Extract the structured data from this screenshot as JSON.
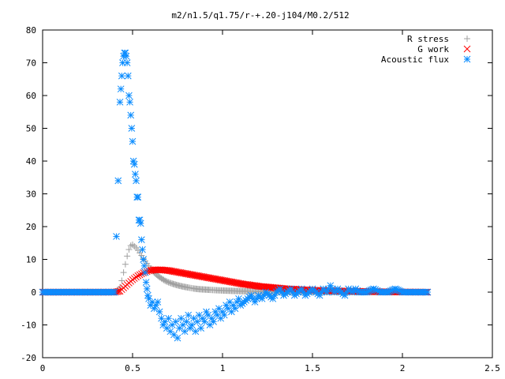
{
  "chart_data": {
    "type": "scatter",
    "title": "m2/n1.5/q1.75/r-+.20-j104/M0.2/512",
    "xlabel": "",
    "ylabel": "",
    "xlim": [
      0,
      2.5
    ],
    "ylim": [
      -20,
      80
    ],
    "xticks": [
      {
        "value": 0,
        "label": "0"
      },
      {
        "value": 0.5,
        "label": "0.5"
      },
      {
        "value": 1,
        "label": "1"
      },
      {
        "value": 1.5,
        "label": "1.5"
      },
      {
        "value": 2,
        "label": "2"
      },
      {
        "value": 2.5,
        "label": "2.5"
      }
    ],
    "yticks": [
      {
        "value": -20,
        "label": "-20"
      },
      {
        "value": -10,
        "label": "-10"
      },
      {
        "value": 0,
        "label": "0"
      },
      {
        "value": 10,
        "label": "10"
      },
      {
        "value": 20,
        "label": "20"
      },
      {
        "value": 30,
        "label": "30"
      },
      {
        "value": 40,
        "label": "40"
      },
      {
        "value": 50,
        "label": "50"
      },
      {
        "value": 60,
        "label": "60"
      },
      {
        "value": 70,
        "label": "70"
      },
      {
        "value": 80,
        "label": "80"
      }
    ],
    "grid": false,
    "legend_position": "top-right",
    "series": [
      {
        "name": "R stress",
        "marker": "plus",
        "color": "#a0a0a0",
        "x": [
          0.0,
          0.05,
          0.1,
          0.15,
          0.2,
          0.25,
          0.3,
          0.35,
          0.4,
          0.42,
          0.43,
          0.44,
          0.45,
          0.46,
          0.47,
          0.48,
          0.49,
          0.5,
          0.51,
          0.52,
          0.53,
          0.54,
          0.55,
          0.56,
          0.57,
          0.58,
          0.59,
          0.6,
          0.62,
          0.64,
          0.66,
          0.68,
          0.7,
          0.72,
          0.75,
          0.78,
          0.81,
          0.84,
          0.87,
          0.9,
          0.93,
          0.96,
          1.0,
          1.05,
          1.1,
          1.15,
          1.2,
          1.25,
          1.3,
          1.35,
          1.4,
          1.5,
          1.6,
          1.7,
          1.8,
          1.9,
          2.0,
          2.1,
          2.14
        ],
        "y": [
          0,
          0,
          0,
          0,
          0,
          0,
          0,
          0,
          0,
          0.5,
          1.5,
          3.5,
          6,
          8.5,
          11,
          13,
          14.2,
          14.5,
          14,
          13.5,
          12.8,
          12,
          11.2,
          10.3,
          9.5,
          8.7,
          8,
          7.2,
          6,
          5,
          4.2,
          3.5,
          3,
          2.6,
          2.1,
          1.7,
          1.4,
          1.1,
          0.9,
          0.8,
          0.7,
          0.6,
          0.5,
          0.4,
          0.3,
          0.25,
          0.2,
          0.15,
          0.12,
          0.1,
          0.08,
          0.05,
          0.03,
          0.02,
          0.01,
          0.01,
          0,
          0,
          0
        ]
      },
      {
        "name": "G work",
        "marker": "cross",
        "color": "#ff0000",
        "x": [
          0.0,
          0.05,
          0.1,
          0.15,
          0.2,
          0.25,
          0.3,
          0.35,
          0.4,
          0.43,
          0.44,
          0.45,
          0.46,
          0.47,
          0.48,
          0.49,
          0.5,
          0.51,
          0.52,
          0.53,
          0.54,
          0.55,
          0.56,
          0.57,
          0.58,
          0.59,
          0.6,
          0.62,
          0.64,
          0.66,
          0.68,
          0.7,
          0.72,
          0.74,
          0.76,
          0.78,
          0.8,
          0.82,
          0.84,
          0.86,
          0.88,
          0.9,
          0.92,
          0.94,
          0.96,
          0.98,
          1.0,
          1.02,
          1.04,
          1.06,
          1.08,
          1.1,
          1.12,
          1.14,
          1.16,
          1.18,
          1.2,
          1.22,
          1.24,
          1.26,
          1.28,
          1.3,
          1.32,
          1.34,
          1.36,
          1.38,
          1.4,
          1.42,
          1.44,
          1.46,
          1.48,
          1.5,
          1.55,
          1.6,
          1.65,
          1.7,
          1.75,
          1.8,
          1.9,
          2.0,
          2.1,
          2.14
        ],
        "y": [
          0,
          0,
          0,
          0,
          0,
          0,
          0,
          0,
          0,
          0.3,
          0.8,
          1.3,
          1.8,
          2.3,
          2.8,
          3.3,
          3.8,
          4.2,
          4.6,
          5,
          5.3,
          5.6,
          5.9,
          6.1,
          6.3,
          6.5,
          6.6,
          6.8,
          6.8,
          6.8,
          6.7,
          6.6,
          6.4,
          6.2,
          6,
          5.8,
          5.6,
          5.4,
          5.2,
          5,
          4.8,
          4.6,
          4.4,
          4.2,
          4,
          3.8,
          3.6,
          3.4,
          3.2,
          3,
          2.8,
          2.6,
          2.4,
          2.3,
          2.1,
          2,
          1.8,
          1.7,
          1.6,
          1.5,
          1.4,
          1.3,
          1.2,
          1.1,
          1,
          0.95,
          0.9,
          0.8,
          0.75,
          0.7,
          0.65,
          0.6,
          0.5,
          0.4,
          0.35,
          0.3,
          0.25,
          0.2,
          0.1,
          0.05,
          0.02,
          0
        ]
      },
      {
        "name": "Acoustic flux",
        "marker": "star",
        "color": "#0a8cff",
        "x": [
          0.0,
          0.05,
          0.1,
          0.15,
          0.2,
          0.25,
          0.3,
          0.35,
          0.4,
          0.42,
          0.43,
          0.435,
          0.44,
          0.445,
          0.45,
          0.455,
          0.46,
          0.465,
          0.47,
          0.475,
          0.48,
          0.485,
          0.49,
          0.495,
          0.5,
          0.505,
          0.51,
          0.515,
          0.52,
          0.525,
          0.53,
          0.535,
          0.54,
          0.545,
          0.55,
          0.555,
          0.56,
          0.565,
          0.57,
          0.575,
          0.58,
          0.585,
          0.59,
          0.6,
          0.61,
          0.62,
          0.63,
          0.64,
          0.65,
          0.66,
          0.67,
          0.68,
          0.69,
          0.7,
          0.71,
          0.72,
          0.73,
          0.74,
          0.75,
          0.76,
          0.77,
          0.78,
          0.79,
          0.8,
          0.81,
          0.82,
          0.83,
          0.84,
          0.85,
          0.86,
          0.87,
          0.88,
          0.89,
          0.9,
          0.91,
          0.92,
          0.93,
          0.94,
          0.95,
          0.96,
          0.97,
          0.98,
          0.99,
          1.0,
          1.01,
          1.02,
          1.03,
          1.04,
          1.05,
          1.06,
          1.07,
          1.08,
          1.09,
          1.1,
          1.12,
          1.14,
          1.16,
          1.18,
          1.2,
          1.22,
          1.24,
          1.26,
          1.28,
          1.3,
          1.32,
          1.34,
          1.36,
          1.38,
          1.4,
          1.42,
          1.44,
          1.46,
          1.48,
          1.5,
          1.52,
          1.54,
          1.56,
          1.58,
          1.6,
          1.62,
          1.64,
          1.66,
          1.68,
          1.7,
          1.72,
          1.74,
          1.76,
          1.78,
          1.8,
          1.84,
          1.88,
          1.92,
          1.96,
          2.0,
          2.04,
          2.08,
          2.12,
          2.14
        ],
        "y": [
          0,
          0,
          0,
          0,
          0,
          0,
          0,
          0,
          0,
          34,
          58,
          62,
          66,
          70,
          72,
          73,
          73,
          72,
          70,
          66,
          60,
          58,
          54,
          50,
          46,
          40,
          39,
          36,
          34,
          29,
          29,
          22,
          22,
          21,
          16,
          13,
          10,
          8,
          6,
          3,
          1,
          -1,
          -2,
          -4,
          -3,
          -5,
          -4,
          -3,
          -6,
          -8,
          -10,
          -9,
          -11,
          -8,
          -12,
          -10,
          -13,
          -9,
          -14,
          -11,
          -8,
          -10,
          -12,
          -9,
          -7,
          -11,
          -10,
          -8,
          -12,
          -9,
          -7,
          -11,
          -8,
          -9,
          -6,
          -7,
          -10,
          -8,
          -9,
          -6,
          -7,
          -5,
          -8,
          -6,
          -7,
          -4,
          -5,
          -3,
          -6,
          -4,
          -5,
          -3,
          -2,
          -4,
          -3,
          -2,
          -1,
          -3,
          -1,
          -2,
          0,
          -1,
          -2,
          0,
          1,
          -1,
          0,
          1,
          -1,
          0,
          1,
          -1,
          0,
          1,
          0,
          -1,
          1,
          0,
          2,
          0,
          1,
          0,
          -1,
          1,
          0,
          1,
          0,
          0,
          0,
          1,
          0,
          0,
          1,
          0,
          0,
          0,
          0,
          0
        ]
      }
    ]
  }
}
